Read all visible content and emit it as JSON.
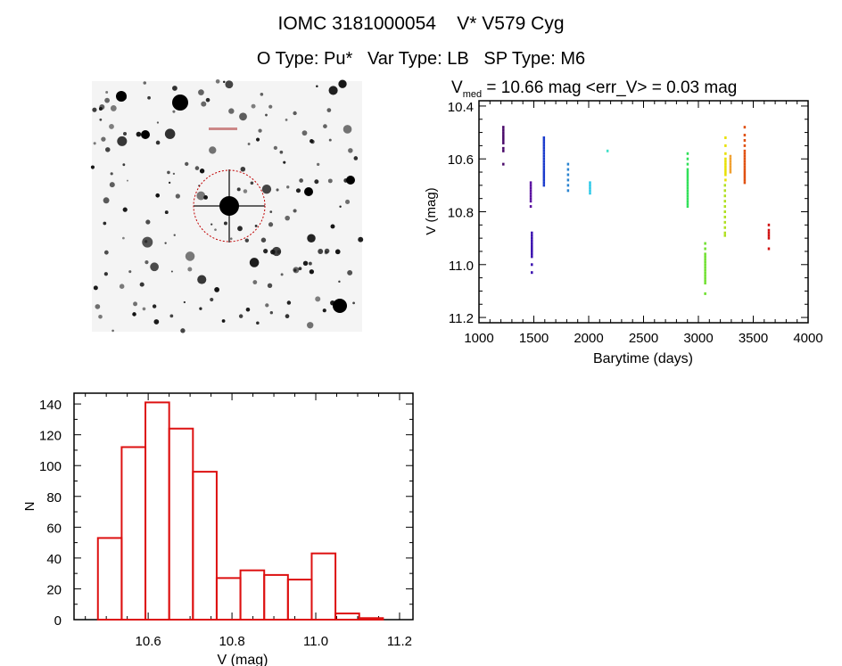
{
  "header": {
    "title": "IOMC 3181000054    V* V579 Cyg",
    "subtitle": "O Type: Pu*   Var Type: LB   SP Type: M6"
  },
  "thumbnail": {
    "description_icon": "star-field-image",
    "circle_color": "#c00000"
  },
  "chart_data": [
    {
      "type": "scatter",
      "title_main": "V",
      "title_sub": "med",
      "title_rest": " = 10.66 mag <err_V> = 0.03 mag",
      "xlabel": "Barytime (days)",
      "ylabel": "V (mag)",
      "xlim": [
        1000,
        4000
      ],
      "ylim": [
        11.22,
        10.38
      ],
      "y_inverted": true,
      "xticks": [
        1000,
        1500,
        2000,
        2500,
        3000,
        3500,
        4000
      ],
      "yticks": [
        "10.4",
        "10.6",
        "10.8",
        "11.0",
        "11.2"
      ],
      "grid": false,
      "clusters": [
        {
          "x": 1220,
          "y": [
            10.48,
            10.49,
            10.5,
            10.51,
            10.52,
            10.53,
            10.54,
            10.56,
            10.57,
            10.62
          ],
          "color": "#4a0a6a"
        },
        {
          "x": 1470,
          "y": [
            10.69,
            10.7,
            10.71,
            10.72,
            10.73,
            10.74,
            10.75,
            10.76,
            10.78
          ],
          "color": "#5a10a0"
        },
        {
          "x": 1480,
          "y": [
            10.88,
            10.89,
            10.9,
            10.91,
            10.92,
            10.93,
            10.94,
            10.95,
            10.96,
            10.97,
            11.0,
            11.03
          ],
          "color": "#3a10b0"
        },
        {
          "x": 1590,
          "y": [
            10.52,
            10.53,
            10.54,
            10.55,
            10.56,
            10.57,
            10.58,
            10.59,
            10.6,
            10.61,
            10.62,
            10.63,
            10.64,
            10.65,
            10.66,
            10.67,
            10.68,
            10.69,
            10.7
          ],
          "color": "#1a3acc"
        },
        {
          "x": 1810,
          "y": [
            10.62,
            10.64,
            10.66,
            10.68,
            10.7,
            10.72
          ],
          "color": "#2a84d0"
        },
        {
          "x": 2010,
          "y": [
            10.69,
            10.7,
            10.71,
            10.72,
            10.73
          ],
          "color": "#28c8e8"
        },
        {
          "x": 2170,
          "y": [
            10.57
          ],
          "color": "#40e0c8"
        },
        {
          "x": 2900,
          "y": [
            10.58,
            10.6,
            10.62,
            10.64,
            10.65,
            10.66,
            10.67,
            10.68,
            10.69,
            10.7,
            10.71,
            10.72,
            10.73,
            10.74,
            10.75,
            10.76,
            10.77,
            10.78
          ],
          "color": "#30e058"
        },
        {
          "x": 3060,
          "y": [
            10.92,
            10.94,
            10.96,
            10.97,
            10.98,
            10.99,
            11.0,
            11.01,
            11.02,
            11.03,
            11.04,
            11.05,
            11.06,
            11.07,
            11.11
          ],
          "color": "#70e030"
        },
        {
          "x": 3240,
          "y": [
            10.7,
            10.72,
            10.74,
            10.76,
            10.78,
            10.8,
            10.82,
            10.84,
            10.86,
            10.88,
            10.89
          ],
          "color": "#b0e020"
        },
        {
          "x": 3245,
          "y": [
            10.52,
            10.55,
            10.58,
            10.6,
            10.61,
            10.62,
            10.63,
            10.64,
            10.65,
            10.66,
            10.68
          ],
          "color": "#e8e000"
        },
        {
          "x": 3290,
          "y": [
            10.59,
            10.6,
            10.61,
            10.62,
            10.63,
            10.64,
            10.65
          ],
          "color": "#f0a030"
        },
        {
          "x": 3420,
          "y": [
            10.48,
            10.51,
            10.53,
            10.55,
            10.57,
            10.58,
            10.59,
            10.6,
            10.61,
            10.62,
            10.63,
            10.64,
            10.65,
            10.66,
            10.67,
            10.68,
            10.69
          ],
          "color": "#e05010"
        },
        {
          "x": 3640,
          "y": [
            10.85,
            10.87,
            10.88,
            10.89,
            10.9,
            10.94
          ],
          "color": "#d01010"
        }
      ]
    },
    {
      "type": "bar",
      "style": "histogram-outline",
      "xlabel": "V (mag)",
      "ylabel": "N",
      "xlim": [
        10.423,
        11.232
      ],
      "ylim": [
        0,
        147
      ],
      "xticks": [
        "10.6",
        "10.8",
        "11.0",
        "11.2"
      ],
      "yticks": [
        "0",
        "20",
        "40",
        "60",
        "80",
        "100",
        "120",
        "140"
      ],
      "bin_start": 10.48,
      "bin_width": 0.0567,
      "values": [
        53,
        112,
        141,
        124,
        96,
        27,
        32,
        29,
        26,
        43,
        4,
        1
      ],
      "color": "#dd1111",
      "grid": false
    }
  ]
}
